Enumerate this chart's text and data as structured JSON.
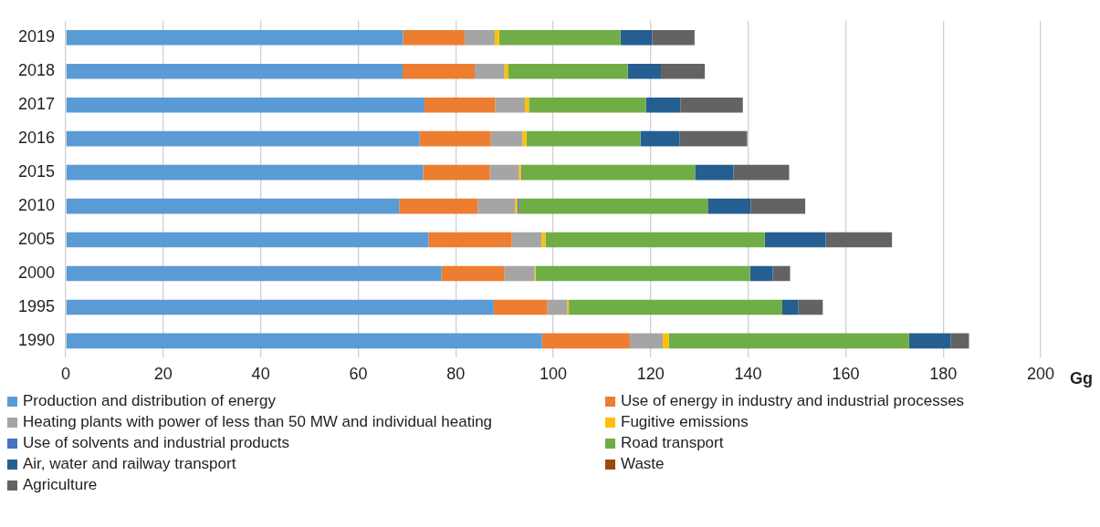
{
  "chart_data": {
    "type": "bar",
    "orientation": "horizontal",
    "stacked": true,
    "xlabel": "Gg",
    "categories": [
      "2019",
      "2018",
      "2017",
      "2016",
      "2015",
      "2010",
      "2005",
      "2000",
      "1995",
      "1990"
    ],
    "series": [
      {
        "name": "Production and distribution of energy",
        "color": "#5b9bd5",
        "values": [
          69.2,
          69.1,
          73.6,
          72.6,
          73.3,
          68.4,
          74.4,
          77.1,
          87.8,
          97.7
        ]
      },
      {
        "name": "Use of energy in industry and industrial processes",
        "color": "#ed7d31",
        "values": [
          12.6,
          14.8,
          14.5,
          14.6,
          13.7,
          16.1,
          17.1,
          12.9,
          11.0,
          18.0
        ]
      },
      {
        "name": "Heating plants with power of less than 50 MW and individual heating",
        "color": "#a5a5a5",
        "values": [
          6.2,
          6.1,
          6.1,
          6.5,
          5.9,
          7.7,
          6.1,
          6.2,
          4.1,
          6.8
        ]
      },
      {
        "name": "Fugitive emissions",
        "color": "#ffc000",
        "values": [
          0.9,
          0.8,
          0.8,
          0.8,
          0.5,
          0.5,
          0.8,
          0.2,
          0.3,
          1.2
        ]
      },
      {
        "name": "Use of solvents and industrial products",
        "color": "#4472c4",
        "values": [
          0,
          0,
          0,
          0,
          0.2,
          0.3,
          0,
          0,
          0,
          0
        ]
      },
      {
        "name": "Road transport",
        "color": "#70ad47",
        "values": [
          24.9,
          24.5,
          24.0,
          23.4,
          35.5,
          38.7,
          45.0,
          44.0,
          43.8,
          49.3
        ]
      },
      {
        "name": "Air, water and railway transport",
        "color": "#255e91",
        "values": [
          6.5,
          6.8,
          7.1,
          8.0,
          7.9,
          8.8,
          12.5,
          4.6,
          3.3,
          8.5
        ]
      },
      {
        "name": "Waste",
        "color": "#9e480e",
        "values": [
          0,
          0,
          0,
          0,
          0,
          0,
          0,
          0,
          0,
          0
        ]
      },
      {
        "name": "Agriculture",
        "color": "#636363",
        "values": [
          8.7,
          9.0,
          12.8,
          13.9,
          11.4,
          11.2,
          13.6,
          3.6,
          5.0,
          3.8
        ]
      }
    ],
    "xlim": [
      0,
      200
    ],
    "xticks": [
      0,
      20,
      40,
      60,
      80,
      100,
      120,
      140,
      160,
      180,
      200
    ],
    "grid": "x",
    "legend": "bottom"
  }
}
